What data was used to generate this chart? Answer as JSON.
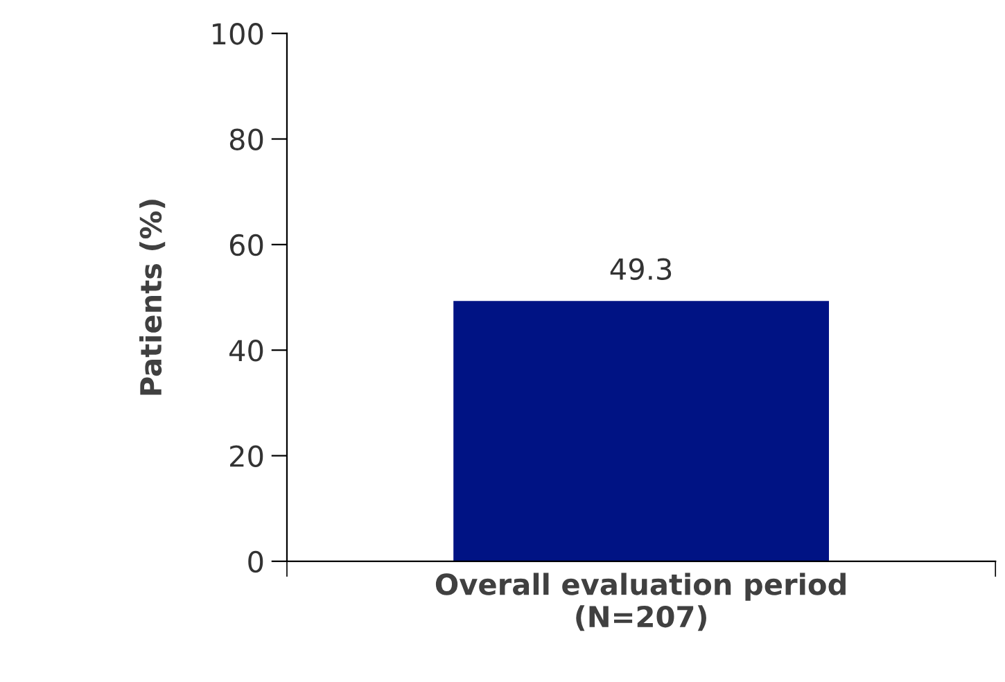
{
  "chart_data": {
    "type": "bar",
    "ylabel": "Patients (%)",
    "categories": [
      "Overall evaluation period\n(N=207)"
    ],
    "values": [
      49.3
    ],
    "color": "#001384",
    "ylim": [
      0,
      100
    ],
    "yticks": [
      0,
      20,
      40,
      60,
      80,
      100
    ],
    "grid": false,
    "data_labels": true
  }
}
